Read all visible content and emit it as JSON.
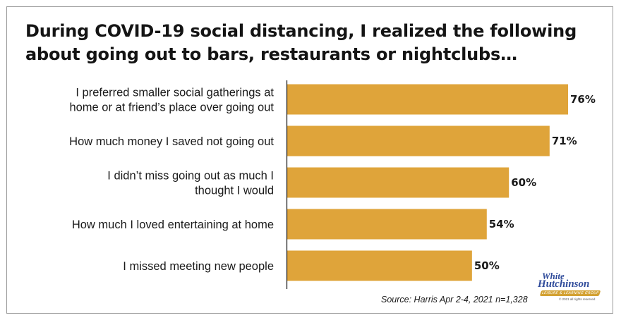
{
  "title": "During COVID-19 social distancing, I realized the following about going out to bars, restaurants or nightclubs…",
  "source": "Source: Harris Apr 2-4, 2021 n=1,328",
  "logo": {
    "line1": "White",
    "line2": "Hutchinson",
    "band": "LEISURE & LEARNING GROUP",
    "small": "© 2021 all rights reserved"
  },
  "colors": {
    "bar": "#DFA43A",
    "axis": "#222222",
    "frame": "#9a9a9a"
  },
  "chart_data": {
    "type": "bar",
    "orientation": "horizontal",
    "categories": [
      [
        "I preferred smaller social gatherings at",
        "home or at friend’s place over going out"
      ],
      [
        "How much money I saved not going out"
      ],
      [
        "I didn’t miss going out as much I",
        "thought I would"
      ],
      [
        "How much I loved entertaining at home"
      ],
      [
        "I missed meeting new people"
      ]
    ],
    "values": [
      76,
      71,
      60,
      54,
      50
    ],
    "value_labels": [
      "76%",
      "71%",
      "60%",
      "54%",
      "50%"
    ],
    "unit": "%",
    "xlim": [
      0,
      100
    ],
    "grid": false,
    "legend": "none"
  }
}
